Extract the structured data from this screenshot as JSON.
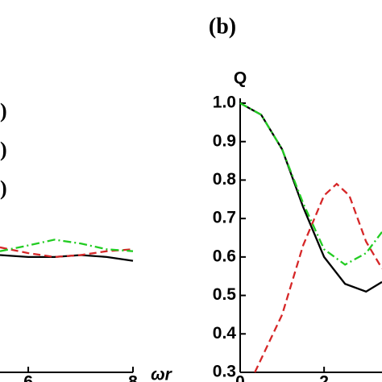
{
  "chart_data": [
    {
      "type": "line",
      "x_label": "ωr",
      "xlim": [
        5.46,
        8
      ],
      "xticks": [
        6,
        8
      ],
      "ylim": [
        0.3,
        1.0
      ],
      "series": [
        {
          "name": ")",
          "color": "#000000",
          "dash": "solid",
          "x": [
            5.46,
            6,
            6.5,
            7,
            7.5,
            8
          ],
          "values": [
            0.605,
            0.6,
            0.6,
            0.605,
            0.6,
            0.59
          ]
        },
        {
          "name": ")",
          "color": "#d62728",
          "dash": "dashed",
          "x": [
            5.46,
            6,
            6.5,
            7,
            7.5,
            8
          ],
          "values": [
            0.625,
            0.61,
            0.6,
            0.605,
            0.615,
            0.62
          ]
        },
        {
          "name": ")",
          "color": "#22cc22",
          "dash": "dashdot",
          "x": [
            5.46,
            6,
            6.5,
            7,
            7.5,
            8
          ],
          "values": [
            0.615,
            0.63,
            0.645,
            0.635,
            0.62,
            0.615
          ]
        }
      ]
    },
    {
      "type": "line",
      "panel_label": "(b)",
      "y_label": "Q",
      "xlim": [
        0,
        3.38
      ],
      "xticks": [
        0,
        2
      ],
      "ylim": [
        0.3,
        1.0
      ],
      "yticks": [
        0.3,
        0.4,
        0.5,
        0.6,
        0.7,
        0.8,
        0.9,
        {
          "value": 1.0,
          "label": "1.0"
        }
      ],
      "series": [
        {
          "name": "black",
          "color": "#000000",
          "dash": "solid",
          "x": [
            0,
            0.5,
            1,
            1.5,
            2,
            2.5,
            3,
            3.38
          ],
          "values": [
            1.0,
            0.97,
            0.88,
            0.73,
            0.6,
            0.53,
            0.51,
            0.535
          ]
        },
        {
          "name": "red",
          "color": "#d62728",
          "dash": "dashed",
          "x": [
            0.35,
            1,
            1.5,
            2,
            2.3,
            2.6,
            3,
            3.38
          ],
          "values": [
            0.3,
            0.45,
            0.63,
            0.76,
            0.79,
            0.76,
            0.64,
            0.57
          ]
        },
        {
          "name": "green",
          "color": "#22cc22",
          "dash": "dashdot",
          "x": [
            0,
            0.5,
            1,
            1.5,
            2,
            2.5,
            3,
            3.38
          ],
          "values": [
            1.0,
            0.97,
            0.88,
            0.74,
            0.62,
            0.58,
            0.61,
            0.665
          ]
        }
      ]
    }
  ]
}
